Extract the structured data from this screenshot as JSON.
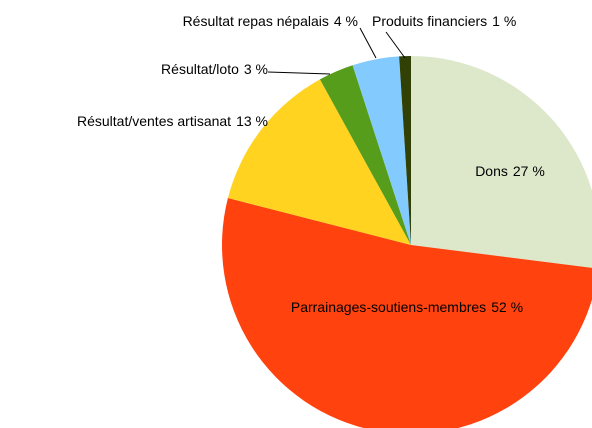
{
  "chart_data": {
    "type": "pie",
    "categories": [
      "Dons",
      "Parrainages-soutiens-membres",
      "Résultat/ventes artisanat",
      "Résultat/loto",
      "Résultat repas népalais",
      "Produits financiers"
    ],
    "values": [
      27,
      52,
      13,
      3,
      4,
      1
    ],
    "value_labels": [
      "27 %",
      "52 %",
      "13 %",
      "3 %",
      "4 %",
      "1 %"
    ],
    "colors": [
      "#dde8cb",
      "#ff420e",
      "#ffd320",
      "#579d1c",
      "#83caff",
      "#314004"
    ]
  }
}
